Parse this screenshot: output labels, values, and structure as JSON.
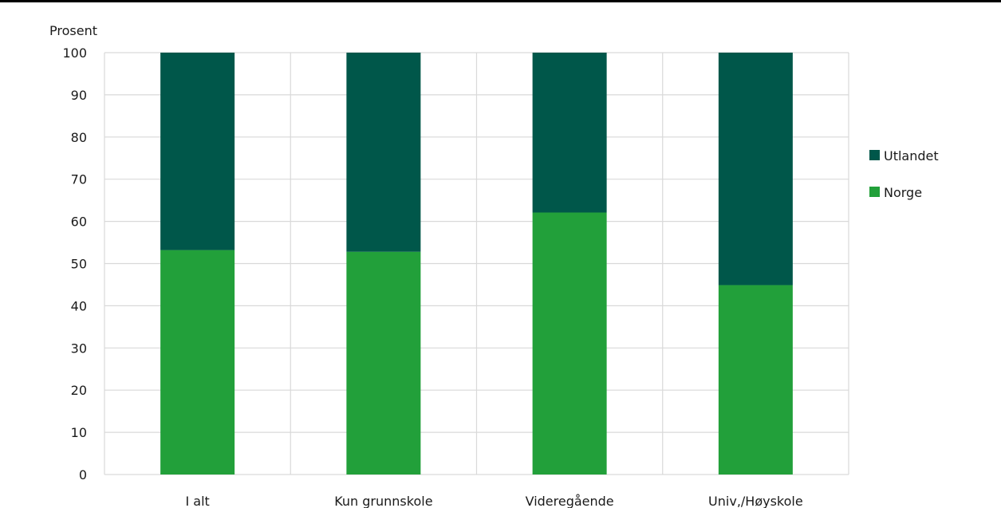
{
  "chart_data": {
    "type": "bar",
    "stacked": true,
    "ylabel": "Prosent",
    "ylim": [
      0,
      100
    ],
    "yticks": [
      0,
      10,
      20,
      30,
      40,
      50,
      60,
      70,
      80,
      90,
      100
    ],
    "categories": [
      "I alt",
      "Kun grunnskole",
      "Videregående",
      "Univ,/Høyskole"
    ],
    "series": [
      {
        "name": "Norge",
        "color": "#22a03a",
        "values": [
          53.2,
          52.8,
          62.1,
          44.9
        ]
      },
      {
        "name": "Utlandet",
        "color": "#00574a",
        "values": [
          46.8,
          47.2,
          37.9,
          55.1
        ]
      }
    ],
    "legend_order": [
      "Utlandet",
      "Norge"
    ],
    "legend_position": "right",
    "grid": true,
    "grid_color": "#d9d9d9"
  }
}
